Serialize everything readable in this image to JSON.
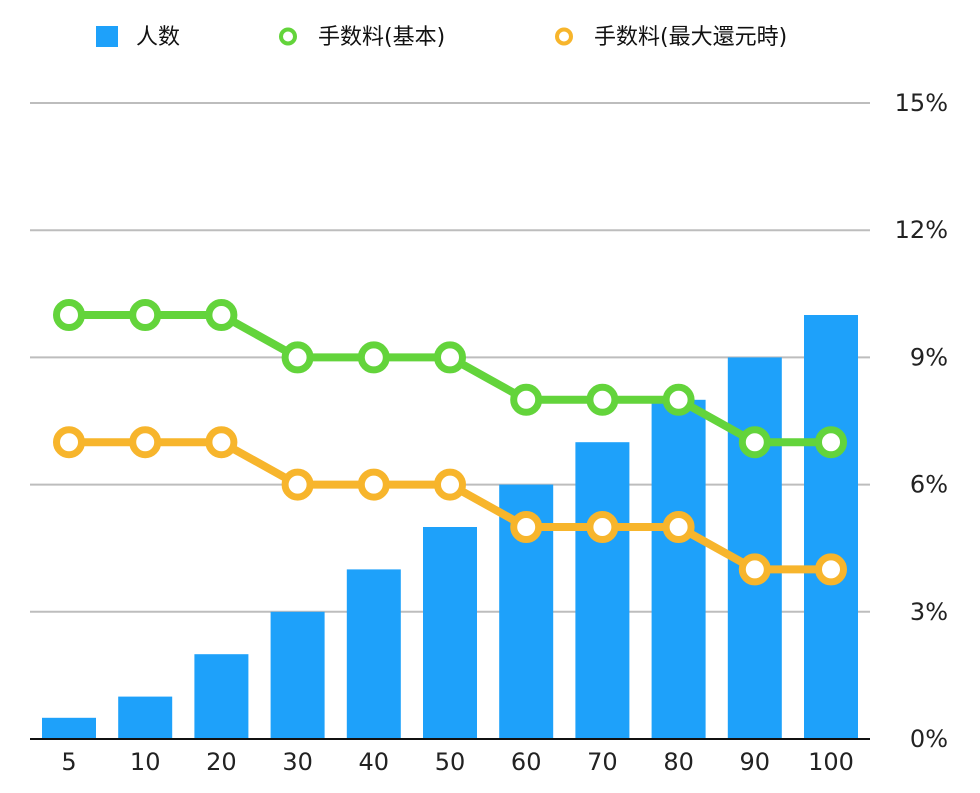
{
  "chart_data": {
    "type": "bar",
    "categories": [
      "5",
      "10",
      "20",
      "30",
      "40",
      "50",
      "60",
      "70",
      "80",
      "90",
      "100"
    ],
    "series": [
      {
        "name": "人数",
        "type": "bar",
        "color": "#1EA1FA",
        "values": [
          0.5,
          1,
          2,
          3,
          4,
          5,
          6,
          7,
          8,
          9,
          10
        ]
      },
      {
        "name": "手数料(基本)",
        "type": "line",
        "color": "#63D43B",
        "values": [
          10,
          10,
          10,
          9,
          9,
          9,
          8,
          8,
          8,
          7,
          7
        ]
      },
      {
        "name": "手数料(最大還元時)",
        "type": "line",
        "color": "#F7B52C",
        "values": [
          7,
          7,
          7,
          6,
          6,
          6,
          5,
          5,
          5,
          4,
          4
        ]
      }
    ],
    "y_axis": {
      "position": "right",
      "range": [
        0,
        15
      ],
      "ticks": [
        0,
        3,
        6,
        9,
        12,
        15
      ],
      "tick_labels": [
        "0%",
        "3%",
        "6%",
        "9%",
        "12%",
        "15%"
      ]
    },
    "grid": true,
    "legend_position": "top"
  }
}
